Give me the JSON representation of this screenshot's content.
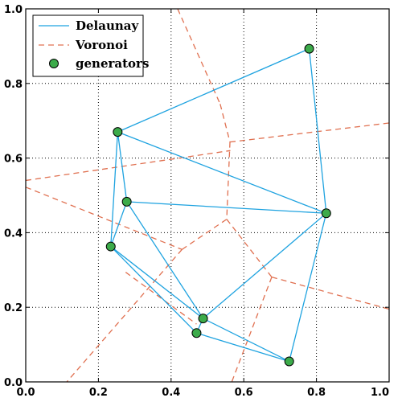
{
  "chart_data": {
    "type": "scatter",
    "xlim": [
      0.0,
      1.0
    ],
    "ylim": [
      0.0,
      1.0
    ],
    "x_ticks": [
      "0.0",
      "0.2",
      "0.4",
      "0.6",
      "0.8",
      "1.0"
    ],
    "y_ticks": [
      "0.0",
      "0.2",
      "0.4",
      "0.6",
      "0.8",
      "1.0"
    ],
    "grid": true,
    "legend": {
      "placement": "top-left",
      "entries": [
        {
          "label": "Delaunay",
          "style": "line",
          "color": "#1fa3e0"
        },
        {
          "label": "Voronoi",
          "style": "dashed",
          "color": "#e07050"
        },
        {
          "label": "generators",
          "style": "marker",
          "color": "#3cab4a"
        }
      ]
    },
    "colors": {
      "delaunay": "#1fa3e0",
      "voronoi": "#e07050",
      "generators": "#3cab4a"
    },
    "generators": [
      {
        "x": 0.78,
        "y": 0.893
      },
      {
        "x": 0.253,
        "y": 0.67
      },
      {
        "x": 0.827,
        "y": 0.452
      },
      {
        "x": 0.278,
        "y": 0.483
      },
      {
        "x": 0.234,
        "y": 0.363
      },
      {
        "x": 0.488,
        "y": 0.17
      },
      {
        "x": 0.47,
        "y": 0.131
      },
      {
        "x": 0.725,
        "y": 0.055
      }
    ],
    "delaunay_edges": [
      [
        0,
        1
      ],
      [
        0,
        2
      ],
      [
        1,
        2
      ],
      [
        1,
        3
      ],
      [
        1,
        4
      ],
      [
        3,
        2
      ],
      [
        3,
        4
      ],
      [
        3,
        5
      ],
      [
        4,
        5
      ],
      [
        4,
        6
      ],
      [
        5,
        2
      ],
      [
        2,
        7
      ],
      [
        6,
        7
      ],
      [
        5,
        6
      ],
      [
        5,
        7
      ]
    ],
    "voronoi_edges": [
      [
        [
          0.418,
          1.0
        ],
        [
          0.535,
          0.745
        ]
      ],
      [
        [
          0.535,
          0.745
        ],
        [
          0.562,
          0.643
        ]
      ],
      [
        [
          0.562,
          0.643
        ],
        [
          1.0,
          0.694
        ]
      ],
      [
        [
          0.562,
          0.643
        ],
        [
          0.553,
          0.436
        ]
      ],
      [
        [
          0.0,
          0.54
        ],
        [
          0.563,
          0.62
        ]
      ],
      [
        [
          0.0,
          0.522
        ],
        [
          0.43,
          0.355
        ]
      ],
      [
        [
          0.43,
          0.355
        ],
        [
          0.553,
          0.436
        ]
      ],
      [
        [
          0.553,
          0.436
        ],
        [
          0.677,
          0.281
        ]
      ],
      [
        [
          0.677,
          0.281
        ],
        [
          1.0,
          0.195
        ]
      ],
      [
        [
          0.677,
          0.281
        ],
        [
          0.567,
          0.0
        ]
      ],
      [
        [
          0.43,
          0.355
        ],
        [
          0.113,
          0.0
        ]
      ],
      [
        [
          0.275,
          0.294
        ],
        [
          0.47,
          0.155
        ]
      ]
    ]
  }
}
